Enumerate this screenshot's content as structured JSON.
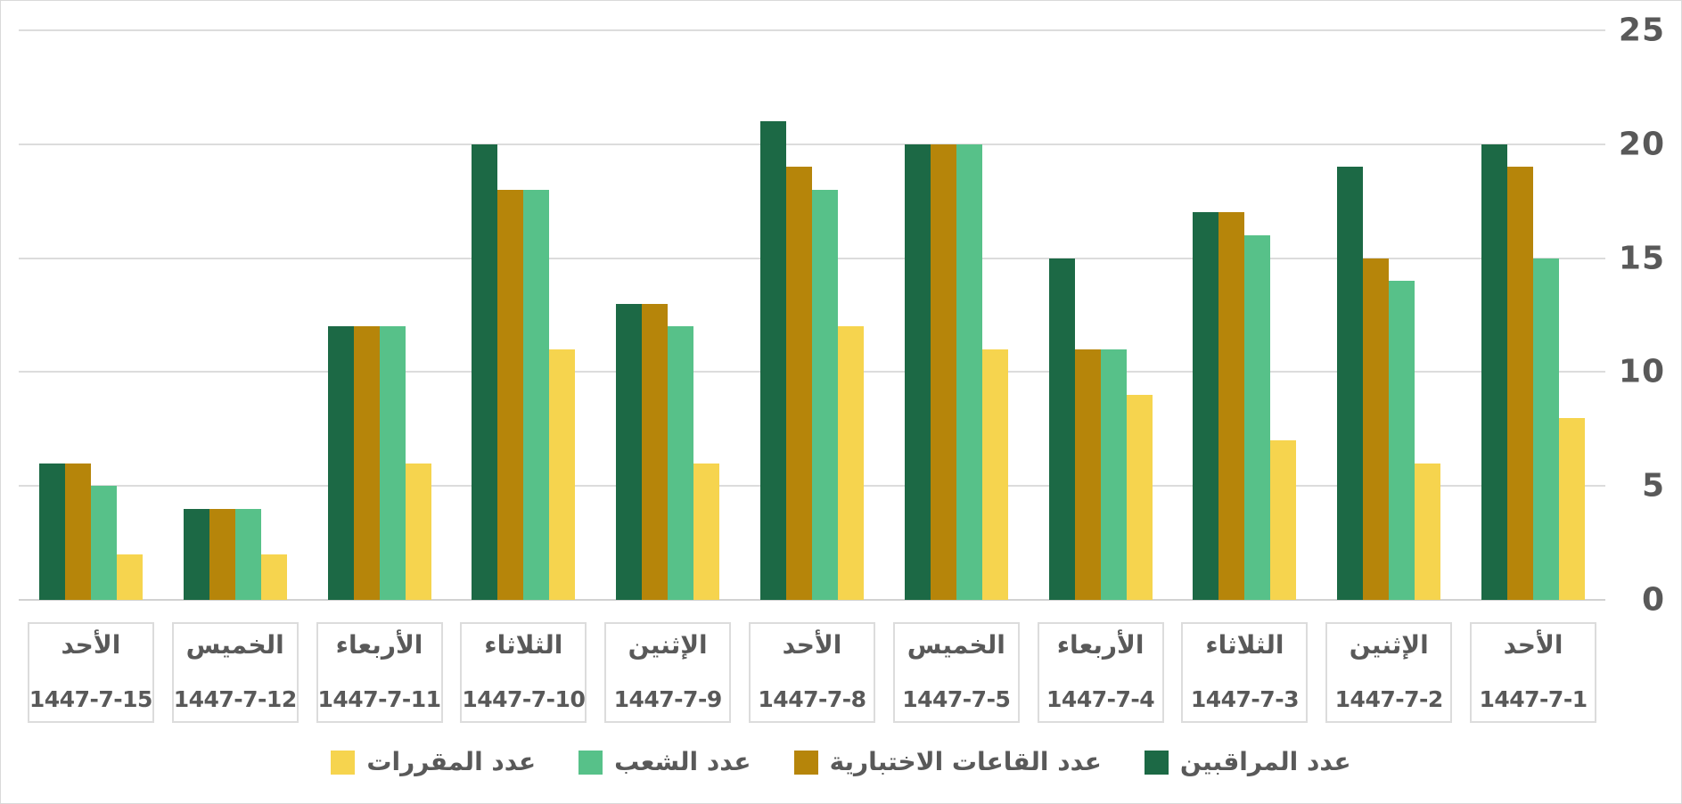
{
  "chart_data": {
    "type": "bar",
    "rtl": true,
    "title": "",
    "xlabel": "",
    "ylabel": "",
    "ylim": [
      0,
      25
    ],
    "yticks": [
      0,
      5,
      10,
      15,
      20,
      25
    ],
    "grid": "horizontal",
    "legend_position": "bottom-center",
    "categories": [
      {
        "day": "الأحد",
        "date": "1447-7-15"
      },
      {
        "day": "الخميس",
        "date": "1447-7-12"
      },
      {
        "day": "الأربعاء",
        "date": "1447-7-11"
      },
      {
        "day": "الثلاثاء",
        "date": "1447-7-10"
      },
      {
        "day": "الإثنين",
        "date": "1447-7-9"
      },
      {
        "day": "الأحد",
        "date": "1447-7-8"
      },
      {
        "day": "الخميس",
        "date": "1447-7-5"
      },
      {
        "day": "الأربعاء",
        "date": "1447-7-4"
      },
      {
        "day": "الثلاثاء",
        "date": "1447-7-3"
      },
      {
        "day": "الإثنين",
        "date": "1447-7-2"
      },
      {
        "day": "الأحد",
        "date": "1447-7-1"
      }
    ],
    "series": [
      {
        "name": "عدد المراقبين",
        "color": "#1c6945",
        "values": [
          6,
          4,
          12,
          20,
          13,
          21,
          20,
          15,
          17,
          19,
          20
        ]
      },
      {
        "name": "عدد القاعات الاختبارية",
        "color": "#b6850a",
        "values": [
          6,
          4,
          12,
          18,
          13,
          19,
          20,
          11,
          17,
          15,
          19
        ]
      },
      {
        "name": "عدد الشعب",
        "color": "#57c189",
        "values": [
          5,
          4,
          12,
          18,
          12,
          18,
          20,
          11,
          16,
          14,
          15
        ]
      },
      {
        "name": "عدد المقررات",
        "color": "#f6d44e",
        "values": [
          2,
          2,
          6,
          11,
          6,
          12,
          11,
          9,
          7,
          6,
          8
        ]
      }
    ],
    "legend": [
      {
        "label": "عدد المقررات",
        "color": "#f6d44e"
      },
      {
        "label": "عدد الشعب",
        "color": "#57c189"
      },
      {
        "label": "عدد القاعات الاختبارية",
        "color": "#b6850a"
      },
      {
        "label": "عدد المراقبين",
        "color": "#1c6945"
      }
    ],
    "colors": {
      "axis_text": "#595959",
      "gridline": "#dcdcdc",
      "category_box_border": "#dcdcdc",
      "background": "#ffffff"
    }
  }
}
